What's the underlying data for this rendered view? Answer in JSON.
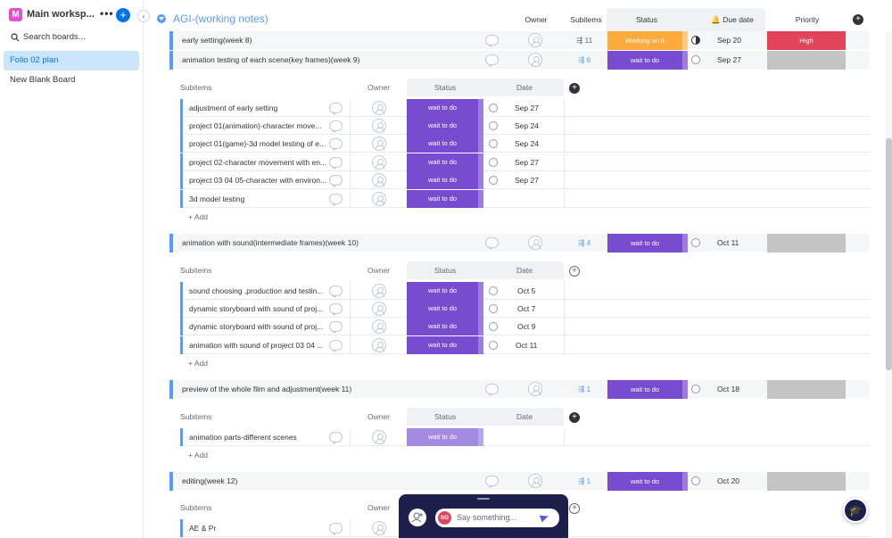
{
  "sidebar": {
    "workspace_initial": "M",
    "workspace_name": "Main worksp...",
    "more": "•••",
    "add": "+",
    "search": "Search boards...",
    "boards": [
      "Folio 02 plan",
      "New Blank Board"
    ]
  },
  "board": {
    "title": "AGI-(working notes)",
    "columns": {
      "owner": "Owner",
      "subitems": "Subitems",
      "status": "Status",
      "due": "Due date",
      "priority": "Priority"
    }
  },
  "items": [
    {
      "name": "early setting(week 8)",
      "subitems": "11",
      "status": "Working on it",
      "due": "Sep 20",
      "priority": "High"
    },
    {
      "name": "animation testing of each scene(key frames)(week 9)",
      "subitems": "6",
      "status": "wait to do",
      "due": "Sep 27",
      "priority": ""
    },
    {
      "name": "animation with sound(intermediate frames)(week 10)",
      "subitems": "4",
      "status": "wait to do",
      "due": "Oct 11",
      "priority": ""
    },
    {
      "name": "preview of the whole film and adjustment(week 11)",
      "subitems": "1",
      "status": "wait to do",
      "due": "Oct 18",
      "priority": ""
    },
    {
      "name": "editing(week 12)",
      "subitems": "1",
      "status": "wait to do",
      "due": "Oct 20",
      "priority": ""
    }
  ],
  "subtable": {
    "name": "Subitems",
    "owner": "Owner",
    "status": "Status",
    "date": "Date",
    "add": "+ Add"
  },
  "sub1": [
    {
      "name": "adjustment of early setting",
      "status": "wait to do",
      "date": "Sep 27"
    },
    {
      "name": "project 01(animation)-character move...",
      "status": "wait to do",
      "date": "Sep 24"
    },
    {
      "name": "project 01(game)-3d model testing of e...",
      "status": "wait to do",
      "date": "Sep 24"
    },
    {
      "name": "project 02-character movement with en...",
      "status": "wait to do",
      "date": "Sep 27"
    },
    {
      "name": "project 03 04 05-character with environ...",
      "status": "wait to do",
      "date": "Sep 27"
    },
    {
      "name": "3d model testing",
      "status": "wait to do",
      "date": ""
    }
  ],
  "sub2": [
    {
      "name": "sound choosing ,production and testin...",
      "status": "wait to do",
      "date": "Oct 5"
    },
    {
      "name": "dynamic storyboard with sound of proj...",
      "status": "wait to do",
      "date": "Oct 7"
    },
    {
      "name": "dynamic storyboard with sound of proj...",
      "status": "wait to do",
      "date": "Oct 9"
    },
    {
      "name": "animation with sound of project 03 04 ...",
      "status": "wait to do",
      "date": "Oct 11"
    }
  ],
  "sub3": [
    {
      "name": "animation parts-different scenes",
      "status": "wait to do",
      "date": ""
    }
  ],
  "sub5": [
    {
      "name": "AE & Pr",
      "status": "",
      "date": ""
    }
  ],
  "chat": {
    "initials": "SG",
    "placeholder": "Say something..."
  },
  "colors": {
    "accent": "#579bfc",
    "purple": "#784bd1",
    "orange": "#fdab3d",
    "red": "#e2445c",
    "gray": "#c4c4c4",
    "nav": "#1f1f4b"
  }
}
